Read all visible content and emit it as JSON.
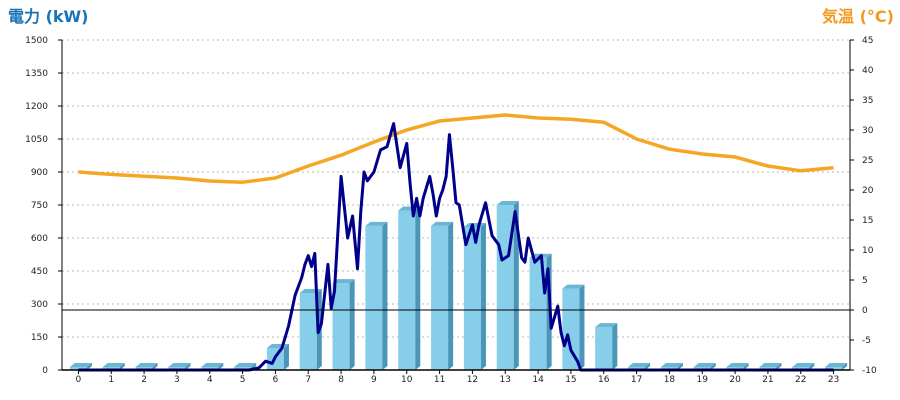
{
  "chart_data": {
    "type": "bar",
    "title_left": "電力 (kW)",
    "title_right": "気温 (°C)",
    "x_ticks": [
      "0",
      "1",
      "2",
      "3",
      "4",
      "5",
      "6",
      "7",
      "8",
      "9",
      "10",
      "11",
      "12",
      "13",
      "14",
      "15",
      "16",
      "17",
      "18",
      "19",
      "20",
      "21",
      "22",
      "23"
    ],
    "y_left": {
      "label": "電力 (kW)",
      "range": [
        0,
        1500
      ],
      "ticks": [
        "0",
        "150",
        "300",
        "450",
        "600",
        "750",
        "900",
        "1050",
        "1200",
        "1350",
        "1500"
      ]
    },
    "y_right": {
      "label": "気温 (°C)",
      "range": [
        -10,
        45
      ],
      "ticks": [
        "-10",
        "-5",
        "0",
        "5",
        "10",
        "15",
        "20",
        "25",
        "30",
        "35",
        "40",
        "45"
      ]
    },
    "grid": true,
    "series": [
      {
        "name": "bars",
        "kind": "bar",
        "axis": "left",
        "color": "#87ceeb",
        "x": [
          0,
          1,
          2,
          3,
          4,
          5,
          6,
          7,
          8,
          9,
          10,
          11,
          12,
          13,
          14,
          15,
          16,
          17,
          18,
          19,
          20,
          21,
          22,
          23
        ],
        "values": [
          0,
          0,
          0,
          0,
          0,
          0,
          100,
          350,
          395,
          655,
          725,
          655,
          650,
          750,
          510,
          370,
          195,
          0,
          0,
          0,
          0,
          0,
          0,
          0
        ]
      },
      {
        "name": "power",
        "kind": "line",
        "axis": "left",
        "color": "#00008b",
        "x": [
          0,
          1,
          2,
          3,
          4,
          5,
          5.2,
          5.5,
          5.7,
          5.9,
          6.0,
          6.2,
          6.4,
          6.6,
          6.8,
          6.9,
          7.0,
          7.1,
          7.2,
          7.3,
          7.4,
          7.6,
          7.7,
          7.8,
          7.9,
          8.0,
          8.2,
          8.35,
          8.5,
          8.6,
          8.7,
          8.8,
          9.0,
          9.2,
          9.4,
          9.6,
          9.8,
          10.0,
          10.1,
          10.2,
          10.3,
          10.4,
          10.5,
          10.7,
          10.8,
          10.9,
          11.0,
          11.1,
          11.2,
          11.3,
          11.4,
          11.5,
          11.6,
          11.8,
          12.0,
          12.1,
          12.2,
          12.4,
          12.6,
          12.8,
          12.9,
          13.1,
          13.3,
          13.5,
          13.6,
          13.7,
          13.9,
          14.1,
          14.2,
          14.3,
          14.4,
          14.6,
          14.7,
          14.8,
          14.9,
          15.0,
          15.2,
          15.3,
          15.4,
          15.5,
          15.6,
          15.7,
          15.8,
          15.9,
          16.0,
          16.1,
          16.3,
          16.5,
          16.7,
          16.9,
          17,
          18,
          19,
          20,
          21,
          22,
          23
        ],
        "values": [
          0,
          0,
          0,
          0,
          0,
          0,
          0,
          10,
          40,
          30,
          60,
          100,
          200,
          340,
          420,
          480,
          520,
          470,
          530,
          170,
          210,
          480,
          280,
          360,
          620,
          880,
          600,
          700,
          460,
          720,
          900,
          860,
          900,
          1000,
          1015,
          1120,
          920,
          1030,
          850,
          700,
          780,
          700,
          780,
          880,
          800,
          700,
          780,
          820,
          880,
          1070,
          920,
          760,
          750,
          570,
          660,
          580,
          660,
          760,
          610,
          570,
          500,
          520,
          720,
          510,
          490,
          600,
          490,
          520,
          350,
          460,
          190,
          290,
          170,
          110,
          160,
          90,
          40,
          0,
          0,
          0,
          0,
          0,
          0,
          0,
          0,
          0,
          0,
          0,
          0,
          0,
          0,
          0,
          0,
          0,
          0,
          0,
          0
        ]
      },
      {
        "name": "temperature",
        "kind": "line",
        "axis": "right",
        "color": "#f5a623",
        "x": [
          0,
          1,
          2,
          3,
          4,
          5,
          6,
          7,
          8,
          9,
          10,
          11,
          12,
          13,
          14,
          15,
          16,
          17,
          18,
          19,
          20,
          21,
          22,
          23
        ],
        "values": [
          23.0,
          22.6,
          22.3,
          22.0,
          21.5,
          21.3,
          22.0,
          24.0,
          25.8,
          28.0,
          30.0,
          31.5,
          32.0,
          32.5,
          32.0,
          31.8,
          31.3,
          28.5,
          26.8,
          26.0,
          25.5,
          24.0,
          23.2,
          23.7
        ]
      }
    ]
  }
}
